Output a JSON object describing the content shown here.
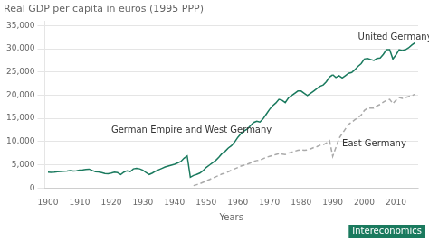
{
  "chart_data": {
    "type": "line",
    "title": "Real GDP per capita in euros (1995 PPP)",
    "xlabel": "Years",
    "xlim": [
      1899,
      2017
    ],
    "xticks": [
      1900,
      1910,
      1920,
      1930,
      1940,
      1950,
      1960,
      1970,
      1980,
      1990,
      2000,
      2010
    ],
    "ylim": [
      0,
      36000
    ],
    "yticks": [
      0,
      {
        "value": 5000,
        "label": "5,000"
      },
      {
        "value": 10000,
        "label": "10,000"
      },
      {
        "value": 15000,
        "label": "15,000"
      },
      {
        "value": 20000,
        "label": "20,000"
      },
      {
        "value": 25000,
        "label": "25,000"
      },
      {
        "value": 30000,
        "label": "30,000"
      },
      {
        "value": 35000,
        "label": "35,000"
      }
    ],
    "grid": true,
    "series": [
      {
        "color": "#1a7a5e",
        "line_style": "solid",
        "x": [
          1900,
          1901,
          1902,
          1903,
          1904,
          1905,
          1906,
          1907,
          1908,
          1909,
          1910,
          1911,
          1912,
          1913,
          1914,
          1915,
          1916,
          1917,
          1918,
          1919,
          1920,
          1921,
          1922,
          1923,
          1924,
          1925,
          1926,
          1927,
          1928,
          1929,
          1930,
          1931,
          1932,
          1933,
          1934,
          1935,
          1936,
          1937,
          1938,
          1939,
          1940,
          1941,
          1942,
          1943,
          1944,
          1945,
          1946,
          1947,
          1948,
          1949,
          1950,
          1951,
          1952,
          1953,
          1954,
          1955,
          1956,
          1957,
          1958,
          1959,
          1960,
          1961,
          1962,
          1963,
          1964,
          1965,
          1966,
          1967,
          1968,
          1969,
          1970,
          1971,
          1972,
          1973,
          1974,
          1975,
          1976,
          1977,
          1978,
          1979,
          1980,
          1981,
          1982,
          1983,
          1984,
          1985,
          1986,
          1987,
          1988,
          1989,
          1990
        ],
        "values": [
          3400,
          3350,
          3400,
          3500,
          3550,
          3600,
          3650,
          3750,
          3650,
          3700,
          3850,
          3900,
          4000,
          4050,
          3750,
          3500,
          3450,
          3300,
          3100,
          3050,
          3200,
          3400,
          3300,
          2900,
          3400,
          3700,
          3500,
          4100,
          4200,
          4100,
          3800,
          3300,
          2900,
          3200,
          3600,
          3900,
          4200,
          4500,
          4700,
          4900,
          5100,
          5400,
          5700,
          6400,
          6900,
          2300,
          2700,
          2900,
          3200,
          3700,
          4400,
          4900,
          5400,
          5900,
          6600,
          7400,
          7900,
          8600,
          9100,
          9900,
          10900,
          11700,
          12300,
          12700,
          13400,
          14100,
          14400,
          14200,
          14900,
          15900,
          16900,
          17700,
          18300,
          19100,
          18900,
          18400,
          19400,
          19900,
          20400,
          20900,
          20900,
          20400,
          19900,
          20400,
          20900,
          21400,
          21900,
          22200,
          22900,
          23900,
          24400
        ]
      },
      {
        "color": "#1a7a5e",
        "line_style": "solid",
        "x": [
          1990,
          1991,
          1992,
          1993,
          1994,
          1995,
          1996,
          1997,
          1998,
          1999,
          2000,
          2001,
          2002,
          2003,
          2004,
          2005,
          2006,
          2007,
          2008,
          2009,
          2010,
          2011,
          2012,
          2013,
          2014,
          2015,
          2016
        ],
        "values": [
          24400,
          23800,
          24200,
          23700,
          24200,
          24700,
          24900,
          25500,
          26200,
          26800,
          27800,
          27900,
          27700,
          27500,
          27900,
          28000,
          28800,
          29800,
          29800,
          27800,
          28700,
          29800,
          29600,
          29800,
          30200,
          30800,
          31300
        ]
      },
      {
        "color": "#aaaaaa",
        "line_style": "dashed",
        "x": [
          1946,
          1947,
          1948,
          1949,
          1950,
          1951,
          1952,
          1953,
          1954,
          1955,
          1956,
          1957,
          1958,
          1959,
          1960,
          1961,
          1962,
          1963,
          1964,
          1965,
          1966,
          1967,
          1968,
          1969,
          1970,
          1971,
          1972,
          1973,
          1974,
          1975,
          1976,
          1977,
          1978,
          1979,
          1980,
          1981,
          1982,
          1983,
          1984,
          1985,
          1986,
          1987,
          1988,
          1989,
          1990,
          1991,
          1992,
          1993,
          1994,
          1995,
          1996,
          1997,
          1998,
          1999,
          2000,
          2001,
          2002,
          2003,
          2004,
          2005,
          2006,
          2007,
          2008,
          2009,
          2010,
          2011,
          2012,
          2013,
          2014,
          2015,
          2016
        ],
        "values": [
          500,
          700,
          900,
          1200,
          1500,
          1800,
          2100,
          2400,
          2700,
          3000,
          3200,
          3500,
          3800,
          4100,
          4400,
          4700,
          4900,
          5100,
          5400,
          5700,
          5900,
          6000,
          6300,
          6600,
          6800,
          7000,
          7200,
          7400,
          7300,
          7200,
          7500,
          7700,
          7900,
          8100,
          8200,
          8100,
          8200,
          8400,
          8700,
          8900,
          9200,
          9300,
          9700,
          10200,
          6800,
          8700,
          10700,
          11700,
          12700,
          13700,
          14200,
          14700,
          15200,
          15700,
          16700,
          17200,
          17200,
          17200,
          17700,
          18000,
          18500,
          18900,
          19100,
          18200,
          18900,
          19500,
          19300,
          19500,
          19700,
          19900,
          20200
        ]
      }
    ],
    "annotations": [
      {
        "text": "German Empire and West Germany",
        "x": 1920,
        "y": 11500
      },
      {
        "text": "East Germany",
        "x": 1993,
        "y": 8500
      },
      {
        "text": "United Germany",
        "x": 1998,
        "y": 31500
      },
      {
        "text": "Intereconomics",
        "color": "#1a7a5e"
      }
    ]
  }
}
